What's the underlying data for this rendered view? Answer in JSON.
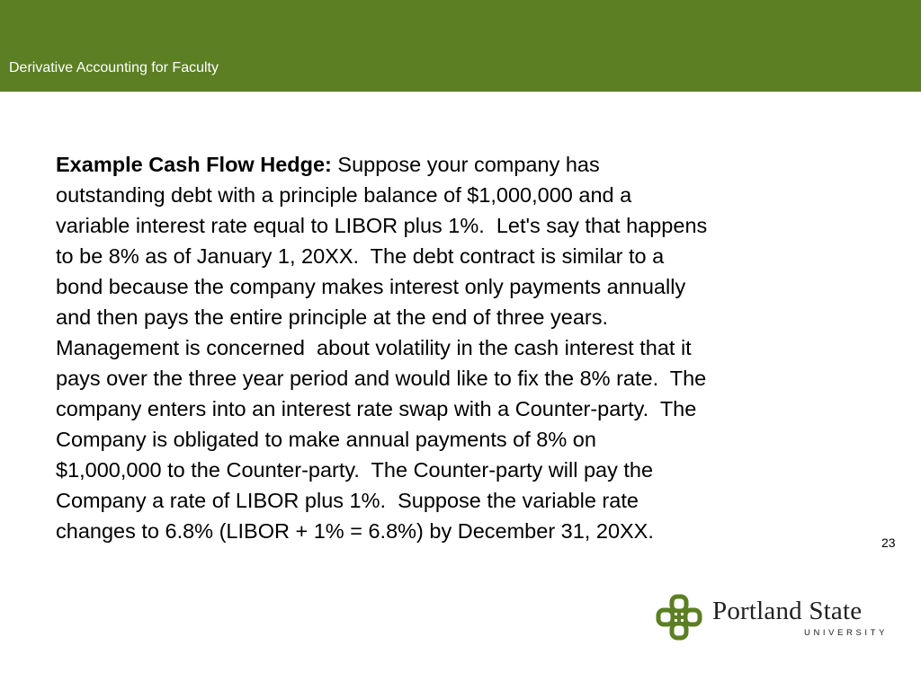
{
  "header": {
    "title": "Derivative Accounting for Faculty",
    "background_color": "#5b7f22"
  },
  "body": {
    "lead": "Example Cash Flow Hedge:",
    "lines": [
      "Suppose your company has",
      "outstanding debt with a principle balance of $1,000,000 and a",
      "variable interest rate equal to LIBOR plus 1%.  Let's say that happens",
      "to be 8% as of January 1, 20XX.  The debt contract is similar to a",
      "bond because the company makes interest only payments annually",
      "and then pays the entire principle at the end of three years.",
      "Management is concerned  about volatility in the cash interest that it",
      "pays over the three year period and would like to fix the 8% rate.  The",
      "company enters into an interest rate swap with a Counter-party.  The",
      "Company is obligated to make annual payments of 8% on",
      "$1,000,000 to the Counter-party.  The Counter-party will pay the",
      "Company a rate of LIBOR plus 1%.  Suppose the variable rate",
      "changes to 6.8% (LIBOR + 1% = 6.8%) by December 31, 20XX."
    ]
  },
  "page_number": "23",
  "logo": {
    "name": "Portland State",
    "subtitle": "UNIVERSITY",
    "mark_icon": "psu-knot-logo-icon",
    "mark_color": "#5b7f22"
  }
}
